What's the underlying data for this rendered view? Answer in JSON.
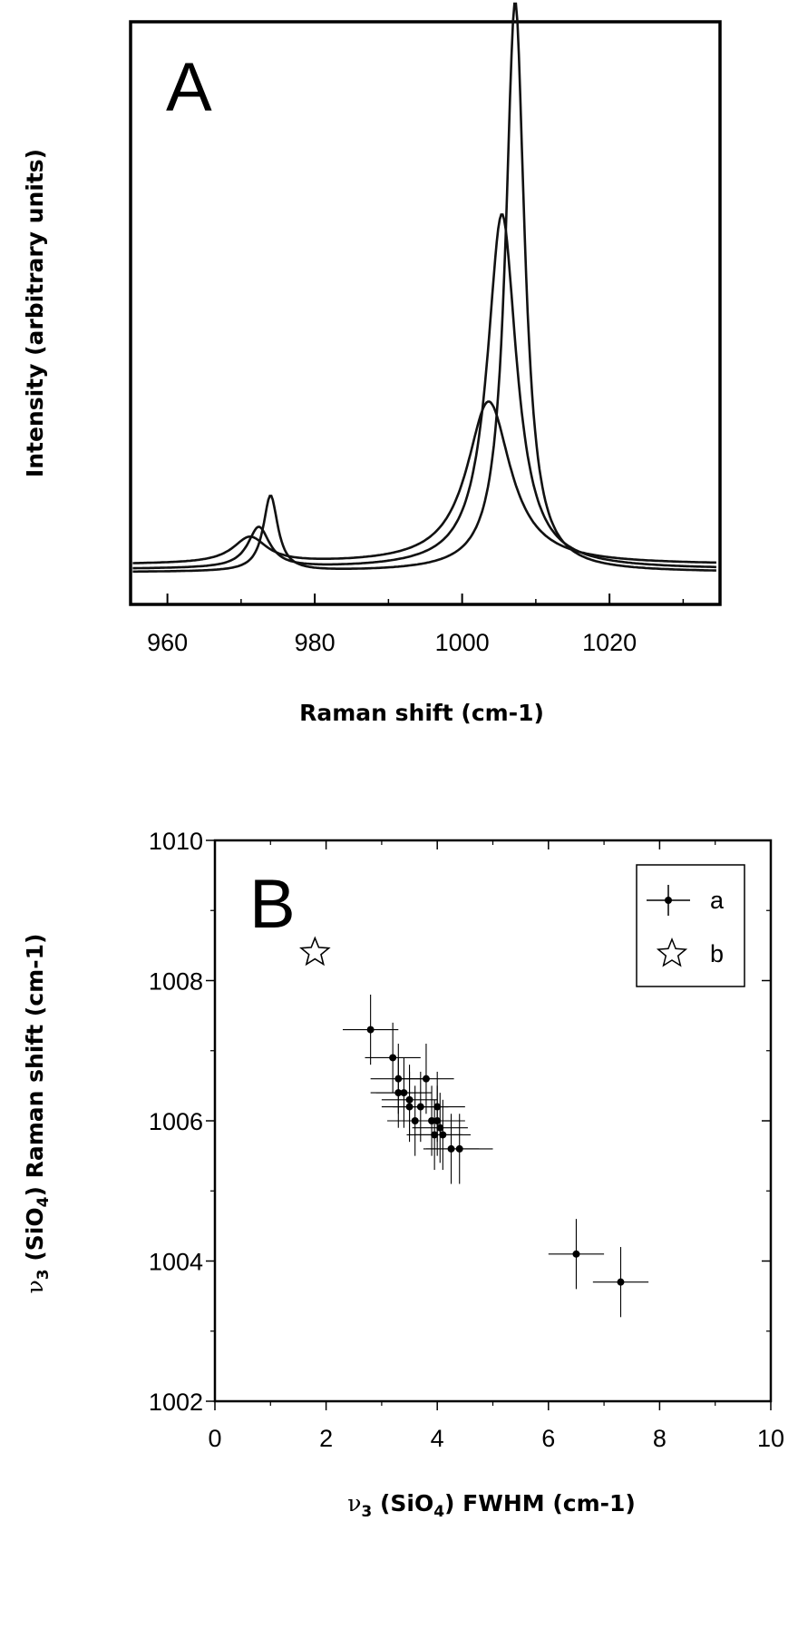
{
  "chart_data": [
    {
      "type": "line",
      "panel_label": "A",
      "xlabel": "Raman shift (cm-1)",
      "ylabel": "Intensity (arbitrary units)",
      "xlim": [
        955,
        1035
      ],
      "ylim": [
        0,
        1.0
      ],
      "xticks": [
        960,
        980,
        1000,
        1020
      ],
      "grid": false,
      "series": [
        {
          "peaks": [
            {
              "x0": 974.0,
              "h": 0.13,
              "g": 1.2
            },
            {
              "x0": 1007.2,
              "h": 0.98,
              "g": 1.55
            }
          ],
          "baseline": 0.055
        },
        {
          "peaks": [
            {
              "x0": 972.4,
              "h": 0.07,
              "g": 1.8
            },
            {
              "x0": 1005.4,
              "h": 0.61,
              "g": 2.4
            }
          ],
          "baseline": 0.06
        },
        {
          "peaks": [
            {
              "x0": 971.2,
              "h": 0.045,
              "g": 2.8
            },
            {
              "x0": 1003.6,
              "h": 0.28,
              "g": 3.6
            }
          ],
          "baseline": 0.068
        }
      ]
    },
    {
      "type": "scatter",
      "panel_label": "B",
      "xlabel": "ν3 (SiO4) FWHM (cm-1)",
      "ylabel": "ν3 (SiO4) Raman shift (cm-1)",
      "xlim": [
        0,
        10
      ],
      "ylim": [
        1002,
        1010
      ],
      "xticks": [
        0,
        2,
        4,
        6,
        8,
        10
      ],
      "yticks": [
        1002,
        1004,
        1006,
        1008,
        1010
      ],
      "grid": false,
      "legend": {
        "placement": "top-right",
        "entries": [
          "a",
          "b"
        ]
      },
      "series": [
        {
          "name": "a",
          "points": [
            {
              "x": 2.8,
              "y": 1007.3,
              "xerr": 0.5,
              "yerr": 0.5
            },
            {
              "x": 3.2,
              "y": 1006.9,
              "xerr": 0.5,
              "yerr": 0.5
            },
            {
              "x": 3.3,
              "y": 1006.6,
              "xerr": 0.5,
              "yerr": 0.5
            },
            {
              "x": 3.3,
              "y": 1006.4,
              "xerr": 0.5,
              "yerr": 0.5
            },
            {
              "x": 3.4,
              "y": 1006.4,
              "xerr": 0.5,
              "yerr": 0.5
            },
            {
              "x": 3.5,
              "y": 1006.3,
              "xerr": 0.5,
              "yerr": 0.5
            },
            {
              "x": 3.5,
              "y": 1006.2,
              "xerr": 0.5,
              "yerr": 0.5
            },
            {
              "x": 3.6,
              "y": 1006.0,
              "xerr": 0.5,
              "yerr": 0.5
            },
            {
              "x": 3.7,
              "y": 1006.2,
              "xerr": 0.5,
              "yerr": 0.5
            },
            {
              "x": 3.8,
              "y": 1006.6,
              "xerr": 0.5,
              "yerr": 0.5
            },
            {
              "x": 3.9,
              "y": 1006.0,
              "xerr": 0.5,
              "yerr": 0.5
            },
            {
              "x": 3.95,
              "y": 1005.8,
              "xerr": 0.5,
              "yerr": 0.5
            },
            {
              "x": 4.0,
              "y": 1006.2,
              "xerr": 0.5,
              "yerr": 0.5
            },
            {
              "x": 4.0,
              "y": 1006.0,
              "xerr": 0.5,
              "yerr": 0.5
            },
            {
              "x": 4.05,
              "y": 1005.9,
              "xerr": 0.5,
              "yerr": 0.5
            },
            {
              "x": 4.1,
              "y": 1005.8,
              "xerr": 0.5,
              "yerr": 0.5
            },
            {
              "x": 4.25,
              "y": 1005.6,
              "xerr": 0.5,
              "yerr": 0.5
            },
            {
              "x": 4.4,
              "y": 1005.6,
              "xerr": 0.6,
              "yerr": 0.5
            },
            {
              "x": 6.5,
              "y": 1004.1,
              "xerr": 0.5,
              "yerr": 0.5
            },
            {
              "x": 7.3,
              "y": 1003.7,
              "xerr": 0.5,
              "yerr": 0.5
            }
          ]
        },
        {
          "name": "b",
          "points": [
            {
              "x": 1.8,
              "y": 1008.4
            }
          ]
        }
      ]
    }
  ]
}
